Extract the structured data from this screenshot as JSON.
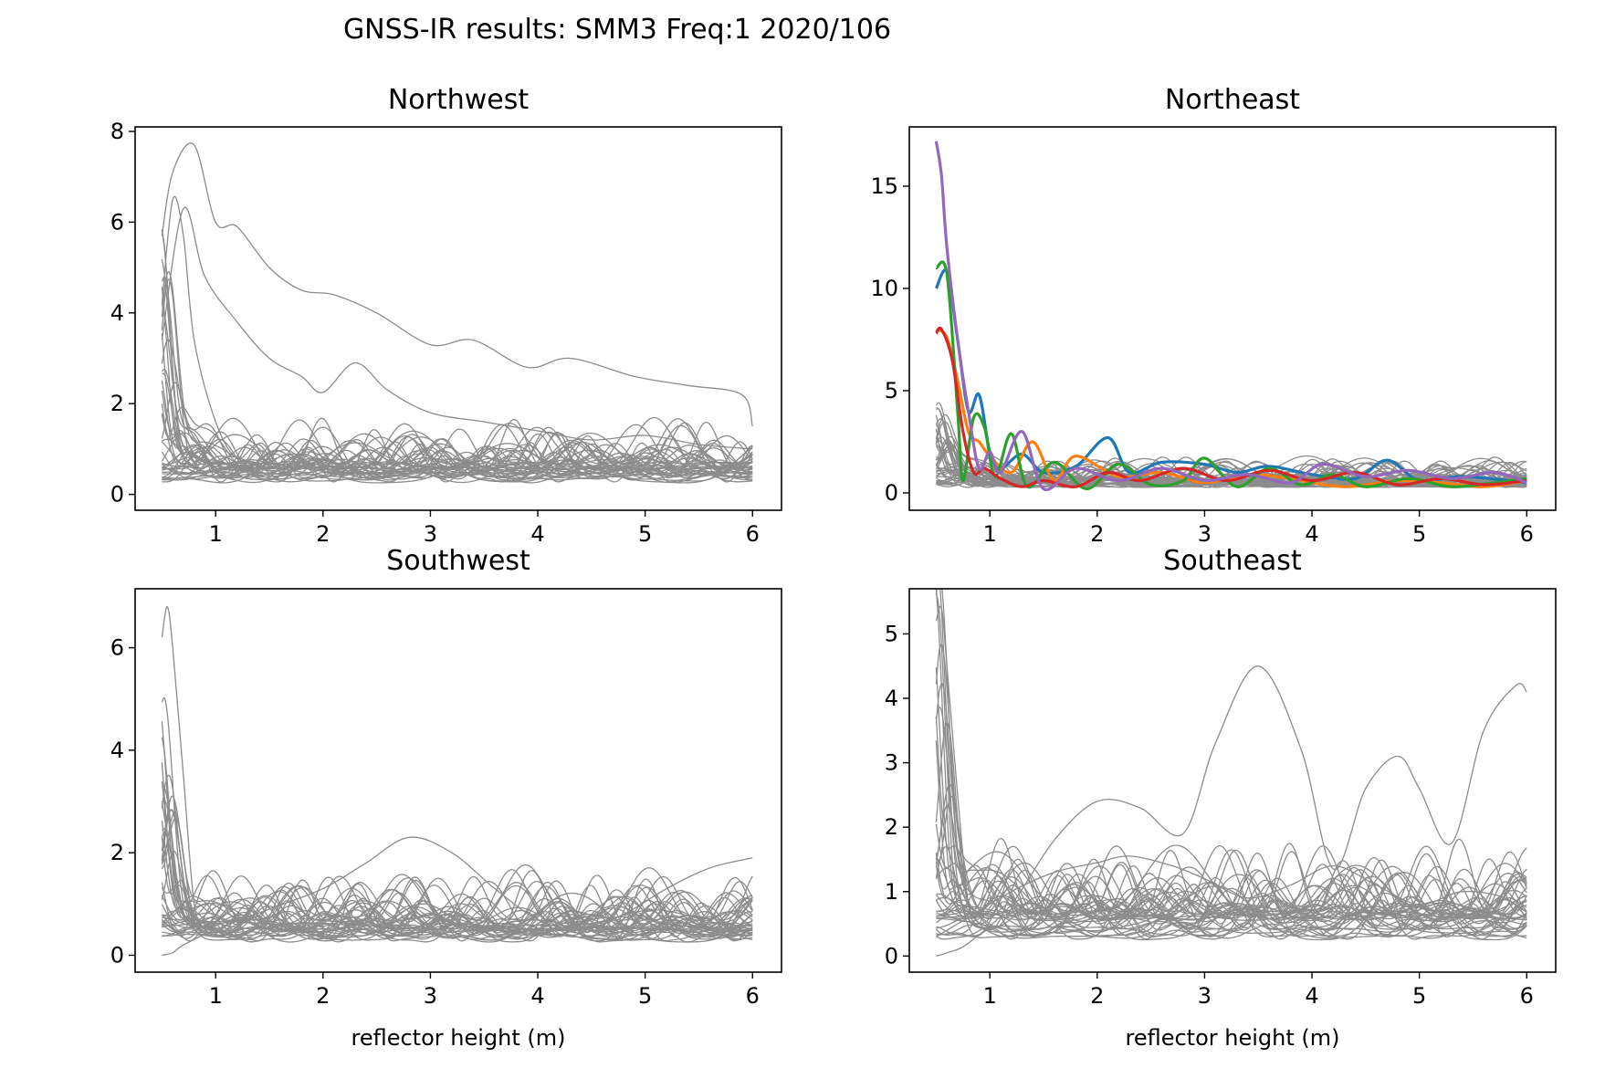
{
  "title": "GNSS-IR results: SMM3 Freq:1 2020/106",
  "colors": {
    "background_trace": "#8c8c8c",
    "axes": "#000000",
    "series_blue": "#1f77b4",
    "series_orange": "#ff7f0e",
    "series_green": "#2ca02c",
    "series_red": "#d62728",
    "series_purple": "#9467bd"
  },
  "chart_data": [
    {
      "type": "line",
      "title": "Northwest",
      "xlabel": "",
      "ylabel": "",
      "xlim": [
        0.25,
        6.27
      ],
      "ylim": [
        -0.35,
        8.1
      ],
      "xticks": [
        "1",
        "2",
        "3",
        "4",
        "5",
        "6"
      ],
      "yticks": [
        "0",
        "2",
        "4",
        "6",
        "8"
      ],
      "grid": false,
      "background_traces": {
        "count": 40,
        "color": "#8c8c8c",
        "x_range": [
          0.5,
          6.0
        ],
        "typical_amplitude": [
          0.2,
          1.7
        ]
      },
      "highlighted_series": [],
      "notable_traces": [
        {
          "x": [
            0.5,
            0.6,
            0.8,
            1.0,
            1.2,
            1.5,
            1.8,
            2.1,
            2.5,
            3.0,
            3.4,
            3.9,
            4.3,
            4.9,
            5.4,
            5.9,
            6.0
          ],
          "y": [
            5.7,
            7.1,
            7.7,
            6.0,
            5.9,
            5.0,
            4.5,
            4.4,
            4.0,
            3.3,
            3.4,
            2.8,
            3.0,
            2.6,
            2.4,
            2.2,
            1.5
          ]
        },
        {
          "x": [
            0.5,
            0.7,
            0.9,
            1.2,
            1.5,
            1.8,
            2.0,
            2.3,
            2.6,
            3.0,
            3.5,
            4.0,
            4.5,
            5.0,
            5.5,
            6.0
          ],
          "y": [
            3.4,
            6.3,
            4.8,
            3.8,
            3.0,
            2.6,
            2.25,
            2.9,
            2.3,
            1.8,
            1.6,
            1.4,
            1.2,
            1.3,
            1.1,
            1.0
          ]
        },
        {
          "x": [
            0.5,
            0.6,
            0.7,
            0.8,
            1.0,
            1.2,
            1.4,
            1.6,
            1.8
          ],
          "y": [
            4.2,
            6.5,
            5.7,
            3.4,
            1.6,
            0.8,
            1.1,
            0.5,
            0.7
          ]
        }
      ]
    },
    {
      "type": "line",
      "title": "Northeast",
      "xlabel": "",
      "ylabel": "",
      "xlim": [
        0.25,
        6.27
      ],
      "ylim": [
        -0.85,
        17.9
      ],
      "xticks": [
        "1",
        "2",
        "3",
        "4",
        "5",
        "6"
      ],
      "yticks": [
        "0",
        "5",
        "10",
        "15"
      ],
      "grid": false,
      "background_traces": {
        "count": 40,
        "color": "#8c8c8c",
        "x_range": [
          0.5,
          6.0
        ],
        "typical_amplitude": [
          0.2,
          1.7
        ]
      },
      "highlighted_series": [
        {
          "color": "#1f77b4",
          "x": [
            0.5,
            0.6,
            0.7,
            0.8,
            0.9,
            1.0,
            1.1,
            1.3,
            1.5,
            1.8,
            2.1,
            2.3,
            2.6,
            3.0,
            3.3,
            3.6,
            4.0,
            4.4,
            4.7,
            5.0,
            5.4,
            6.0
          ],
          "y": [
            10.0,
            10.8,
            7.5,
            4.0,
            4.8,
            2.0,
            1.2,
            1.9,
            1.0,
            1.3,
            2.7,
            1.0,
            1.5,
            1.4,
            1.0,
            1.3,
            0.9,
            0.7,
            1.6,
            0.6,
            0.8,
            0.5
          ]
        },
        {
          "color": "#ff7f0e",
          "x": [
            0.5,
            0.6,
            0.7,
            0.8,
            0.9,
            1.0,
            1.2,
            1.4,
            1.6,
            1.8,
            2.2,
            2.6,
            3.0,
            3.4,
            3.8,
            4.3,
            4.8,
            5.2,
            5.6,
            6.0
          ],
          "y": [
            8.0,
            7.6,
            5.5,
            3.0,
            2.5,
            1.8,
            1.0,
            2.5,
            0.6,
            1.8,
            0.8,
            1.0,
            0.5,
            0.9,
            0.7,
            0.3,
            0.6,
            0.5,
            0.3,
            0.6
          ]
        },
        {
          "color": "#2ca02c",
          "x": [
            0.5,
            0.6,
            0.7,
            0.75,
            0.85,
            0.95,
            1.05,
            1.2,
            1.35,
            1.6,
            1.9,
            2.2,
            2.5,
            2.8,
            3.0,
            3.3,
            3.6,
            3.9,
            4.2,
            4.5,
            4.9,
            5.3,
            5.7,
            6.0
          ],
          "y": [
            11.0,
            10.7,
            4.0,
            0.6,
            3.7,
            3.2,
            0.8,
            2.9,
            0.3,
            1.5,
            0.2,
            1.4,
            0.4,
            0.6,
            1.7,
            0.3,
            1.2,
            0.4,
            0.9,
            0.3,
            0.7,
            0.3,
            0.5,
            0.7
          ]
        },
        {
          "color": "#d62728",
          "x": [
            0.5,
            0.55,
            0.65,
            0.75,
            0.85,
            0.95,
            1.1,
            1.3,
            1.5,
            1.8,
            2.1,
            2.4,
            2.8,
            3.2,
            3.6,
            4.0,
            4.4,
            4.8,
            5.2,
            5.6,
            6.0
          ],
          "y": [
            7.8,
            8.0,
            6.5,
            3.0,
            1.0,
            1.2,
            0.7,
            0.3,
            0.6,
            0.3,
            1.0,
            0.6,
            1.2,
            0.6,
            1.1,
            0.6,
            1.0,
            0.4,
            0.7,
            0.4,
            0.6
          ]
        },
        {
          "color": "#9467bd",
          "x": [
            0.5,
            0.55,
            0.6,
            0.7,
            0.8,
            0.9,
            1.0,
            1.1,
            1.3,
            1.5,
            1.8,
            2.2,
            2.6,
            3.0,
            3.4,
            3.8,
            4.1,
            4.5,
            4.9,
            5.3,
            5.7,
            6.0
          ],
          "y": [
            17.2,
            15.5,
            12.0,
            7.5,
            4.0,
            1.2,
            2.0,
            1.0,
            3.0,
            0.2,
            1.2,
            0.6,
            1.2,
            0.6,
            0.9,
            0.5,
            1.4,
            0.8,
            1.1,
            0.7,
            1.0,
            0.5
          ]
        }
      ]
    },
    {
      "type": "line",
      "title": "Southwest",
      "xlabel": "reflector height (m)",
      "ylabel": "",
      "xlim": [
        0.25,
        6.27
      ],
      "ylim": [
        -0.33,
        7.15
      ],
      "xticks": [
        "1",
        "2",
        "3",
        "4",
        "5",
        "6"
      ],
      "yticks": [
        "0",
        "2",
        "4",
        "6"
      ],
      "grid": false,
      "background_traces": {
        "count": 40,
        "color": "#8c8c8c",
        "x_range": [
          0.5,
          6.0
        ],
        "typical_amplitude": [
          0.2,
          1.7
        ]
      },
      "highlighted_series": [],
      "notable_traces": [
        {
          "x": [
            0.5,
            0.55,
            0.6,
            0.7,
            0.8,
            0.9,
            1.0,
            1.2,
            1.4
          ],
          "y": [
            6.2,
            6.8,
            6.0,
            3.5,
            1.0,
            0.6,
            0.5,
            0.4,
            0.6
          ]
        },
        {
          "x": [
            0.5,
            0.6,
            0.7,
            1.0,
            1.5,
            2.0,
            2.4,
            2.8,
            3.2,
            3.6,
            4.0,
            4.4,
            4.8,
            5.2,
            5.6,
            6.0
          ],
          "y": [
            0.0,
            0.05,
            0.2,
            0.5,
            0.9,
            1.3,
            1.8,
            2.3,
            2.0,
            1.3,
            0.7,
            0.5,
            0.8,
            1.3,
            1.7,
            1.9
          ]
        }
      ]
    },
    {
      "type": "line",
      "title": "Southeast",
      "xlabel": "reflector height (m)",
      "ylabel": "",
      "xlim": [
        0.25,
        6.27
      ],
      "ylim": [
        -0.25,
        5.7
      ],
      "xticks": [
        "1",
        "2",
        "3",
        "4",
        "5",
        "6"
      ],
      "yticks": [
        "0",
        "1",
        "2",
        "3",
        "4",
        "5"
      ],
      "grid": false,
      "background_traces": {
        "count": 40,
        "color": "#8c8c8c",
        "x_range": [
          0.5,
          6.0
        ],
        "typical_amplitude": [
          0.2,
          1.7
        ]
      },
      "highlighted_series": [],
      "notable_traces": [
        {
          "x": [
            0.5,
            0.6,
            0.8,
            1.2,
            1.6,
            2.0,
            2.4,
            2.8,
            3.1,
            3.5,
            3.9,
            4.2,
            4.5,
            4.8,
            5.0,
            5.3,
            5.6,
            5.9,
            6.0
          ],
          "y": [
            0.0,
            0.05,
            0.2,
            0.8,
            1.8,
            2.4,
            2.3,
            1.9,
            3.3,
            4.5,
            3.2,
            1.35,
            2.6,
            3.1,
            2.6,
            1.75,
            3.5,
            4.2,
            4.1
          ]
        },
        {
          "x": [
            0.5,
            0.55,
            0.6,
            0.7,
            0.8,
            0.9,
            1.0,
            1.2,
            1.5
          ],
          "y": [
            5.2,
            5.4,
            4.5,
            2.5,
            0.8,
            0.5,
            0.9,
            0.4,
            0.6
          ]
        },
        {
          "x": [
            0.5,
            0.8,
            1.2,
            1.6,
            2.0,
            2.3,
            2.7,
            3.0,
            3.4,
            3.8,
            4.2,
            4.6,
            5.0,
            5.4,
            5.8,
            6.0
          ],
          "y": [
            0.3,
            0.6,
            1.0,
            1.3,
            1.45,
            1.55,
            1.4,
            1.2,
            0.9,
            1.1,
            1.4,
            1.1,
            0.8,
            1.0,
            0.9,
            0.6
          ]
        }
      ]
    }
  ]
}
